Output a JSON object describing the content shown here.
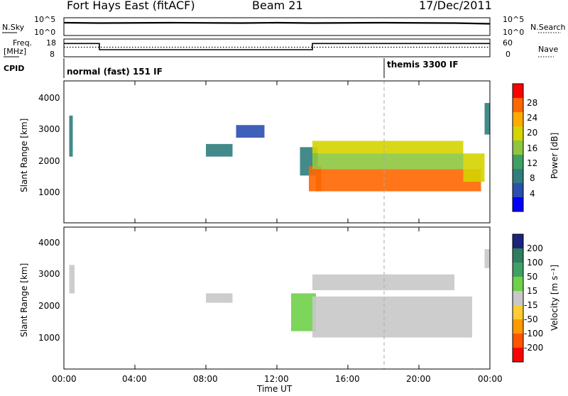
{
  "header": {
    "station": "Fort Hays East (fitACF)",
    "beam": "Beam 21",
    "date": "17/Dec/2011"
  },
  "summary_panel": {
    "left_label": "N.Sky",
    "right_label": "N.Search",
    "left_ticks": [
      "10^5",
      "10^0"
    ],
    "right_ticks": [
      "10^5",
      "10^0"
    ]
  },
  "freq_panel": {
    "left_label_1": "Freq.",
    "left_label_2": "[MHz]",
    "right_label": "Nave",
    "left_ticks": [
      "18",
      "8"
    ],
    "right_ticks": [
      "60",
      "0"
    ]
  },
  "cpid_panel": {
    "label": "CPID",
    "mode_1": "normal (fast) 151 IF",
    "mode_2": "themis 3300 IF"
  },
  "power_panel": {
    "ylabel": "Slant Range [km]",
    "yticks": [
      "4000",
      "3000",
      "2000",
      "1000"
    ],
    "colorbar_label": "Power [dB]",
    "colorbar_ticks": [
      "28",
      "24",
      "20",
      "16",
      "12",
      "8",
      "4"
    ],
    "colorbar_colors": [
      "#ff0000",
      "#ff6600",
      "#ffaa00",
      "#d4d400",
      "#8ec63f",
      "#3fa063",
      "#2f7d7d",
      "#2a4fb0",
      "#0000ff"
    ]
  },
  "velocity_panel": {
    "ylabel": "Slant Range [km]",
    "yticks": [
      "4000",
      "3000",
      "2000",
      "1000"
    ],
    "colorbar_label": "Velocity [m s⁻¹]",
    "colorbar_ticks": [
      "200",
      "100",
      "50",
      "15",
      "-15",
      "-50",
      "-100",
      "-200"
    ],
    "colorbar_colors": [
      "#1a237e",
      "#2e7d5e",
      "#3fa063",
      "#6fd04a",
      "#c8c8c8",
      "#ffcc33",
      "#ff9900",
      "#ff5500",
      "#ff0000"
    ]
  },
  "x_axis": {
    "label": "Time UT",
    "ticks": [
      "00:00",
      "04:00",
      "08:00",
      "12:00",
      "16:00",
      "20:00",
      "00:00"
    ]
  },
  "chart_data": [
    {
      "type": "line",
      "name": "summary",
      "x_unit": "hours UT",
      "xlim": [
        0,
        24
      ],
      "series": [
        {
          "name": "N.Sky",
          "x": [
            0,
            2,
            6,
            10,
            12,
            14,
            18,
            22,
            24
          ],
          "y_log10": [
            3.6,
            3.5,
            3.6,
            3.5,
            3.6,
            3.5,
            3.6,
            3.5,
            3.3
          ]
        }
      ]
    },
    {
      "type": "line",
      "name": "frequency",
      "x_unit": "hours UT",
      "xlim": [
        0,
        24
      ],
      "ylim": [
        8,
        18
      ],
      "series": [
        {
          "name": "Freq.",
          "x": [
            0,
            2,
            2,
            14,
            14,
            24
          ],
          "y": [
            15.5,
            15.5,
            12,
            12,
            15.5,
            15.5
          ]
        },
        {
          "name": "Nave",
          "x": [
            0,
            24
          ],
          "y": [
            15,
            15
          ]
        }
      ]
    },
    {
      "type": "heatmap",
      "name": "power",
      "quantity": "Power [dB]",
      "x_unit": "hours UT",
      "xlim": [
        0,
        24
      ],
      "ylim": [
        0,
        4500
      ],
      "clim": [
        0,
        30
      ],
      "cells": [
        {
          "t": [
            0.3,
            0.5
          ],
          "r": [
            2100,
            3400
          ],
          "v": 10
        },
        {
          "t": [
            8.0,
            9.5
          ],
          "r": [
            2100,
            2500
          ],
          "v": 7
        },
        {
          "t": [
            9.7,
            11.3
          ],
          "r": [
            2700,
            3100
          ],
          "v": 6
        },
        {
          "t": [
            13.3,
            14.3
          ],
          "r": [
            1500,
            2400
          ],
          "v": 10
        },
        {
          "t": [
            13.8,
            14.5
          ],
          "r": [
            1000,
            1800
          ],
          "v": 24
        },
        {
          "t": [
            14.0,
            22.5
          ],
          "r": [
            2200,
            2600
          ],
          "v": 17
        },
        {
          "t": [
            14.0,
            22.5
          ],
          "r": [
            1700,
            2200
          ],
          "v": 14
        },
        {
          "t": [
            14.2,
            23.5
          ],
          "r": [
            1000,
            1700
          ],
          "v": 26
        },
        {
          "t": [
            22.5,
            23.7
          ],
          "r": [
            1300,
            2200
          ],
          "v": 20
        },
        {
          "t": [
            23.7,
            24
          ],
          "r": [
            2800,
            3800
          ],
          "v": 8
        }
      ]
    },
    {
      "type": "heatmap",
      "name": "velocity",
      "quantity": "Velocity [m s-1]",
      "x_unit": "hours UT",
      "xlim": [
        0,
        24
      ],
      "ylim": [
        0,
        4500
      ],
      "clim": [
        -200,
        200
      ],
      "cells": [
        {
          "t": [
            0.3,
            0.6
          ],
          "r": [
            2400,
            3300
          ],
          "v": 0
        },
        {
          "t": [
            8.0,
            9.5
          ],
          "r": [
            2100,
            2400
          ],
          "v": 0
        },
        {
          "t": [
            12.8,
            14.2
          ],
          "r": [
            1200,
            2400
          ],
          "v": 30
        },
        {
          "t": [
            14.0,
            23.0
          ],
          "r": [
            1000,
            2300
          ],
          "v": 0
        },
        {
          "t": [
            14.0,
            22.0
          ],
          "r": [
            2500,
            3000
          ],
          "v": 0
        },
        {
          "t": [
            23.7,
            24
          ],
          "r": [
            3200,
            3800
          ],
          "v": 0
        }
      ]
    }
  ]
}
